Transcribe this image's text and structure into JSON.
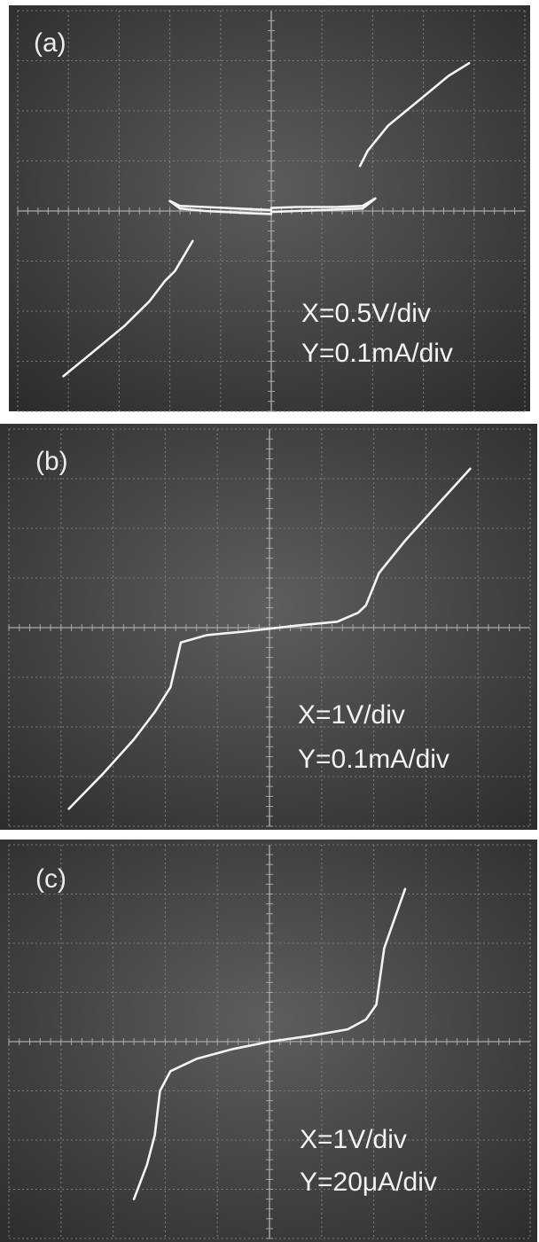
{
  "chart_data": [
    {
      "type": "line",
      "panel_label": "(a)",
      "annotations": [
        "X=0.5V/div",
        "Y=0.1mA/div"
      ],
      "grid": true,
      "xlim_div": [
        -5,
        5
      ],
      "ylim_div": [
        -4,
        4
      ],
      "series": [
        {
          "x": [
            -4.1,
            -3.5,
            -2.9,
            -2.4,
            -2.1,
            -1.9,
            -1.55
          ],
          "y": [
            -3.3,
            -2.8,
            -2.3,
            -1.8,
            -1.4,
            -1.2,
            -0.6
          ]
        },
        {
          "x": [
            -2.0,
            -1.8,
            -1.3,
            -0.5,
            0.0
          ],
          "y": [
            0.2,
            0.1,
            0.08,
            0.04,
            0.02
          ]
        },
        {
          "x": [
            -2.0,
            -1.8,
            -1.3,
            -0.5,
            0.0
          ],
          "y": [
            0.2,
            0.05,
            0.0,
            -0.04,
            -0.06
          ]
        },
        {
          "x": [
            0.0,
            0.5,
            1.3,
            1.8,
            2.05
          ],
          "y": [
            0.06,
            0.08,
            0.08,
            0.1,
            0.25
          ]
        },
        {
          "x": [
            0.0,
            0.5,
            1.3,
            1.8,
            2.05
          ],
          "y": [
            -0.02,
            0.0,
            0.03,
            0.05,
            0.25
          ]
        },
        {
          "x": [
            1.75,
            1.9,
            2.3,
            2.9,
            3.5,
            3.9
          ],
          "y": [
            0.9,
            1.2,
            1.7,
            2.2,
            2.7,
            2.95
          ]
        }
      ]
    },
    {
      "type": "line",
      "panel_label": "(b)",
      "annotations": [
        "X=1V/div",
        "Y=0.1mA/div"
      ],
      "grid": true,
      "xlim_div": [
        -5,
        5
      ],
      "ylim_div": [
        -4,
        4
      ],
      "series": [
        {
          "x": [
            -3.85,
            -3.2,
            -2.6,
            -2.2,
            -1.9,
            -1.7,
            -1.2,
            -0.5,
            0.5,
            1.3,
            1.7,
            1.85,
            2.1,
            2.6,
            3.2,
            3.85
          ],
          "y": [
            -3.65,
            -2.95,
            -2.25,
            -1.7,
            -1.2,
            -0.3,
            -0.15,
            -0.08,
            0.04,
            0.12,
            0.3,
            0.45,
            1.1,
            1.75,
            2.45,
            3.2
          ]
        }
      ]
    },
    {
      "type": "line",
      "panel_label": "(c)",
      "annotations": [
        "X=1V/div",
        "Y=20μA/div"
      ],
      "grid": true,
      "xlim_div": [
        -5,
        5
      ],
      "ylim_div": [
        -4,
        4
      ],
      "series": [
        {
          "x": [
            -2.6,
            -2.35,
            -2.2,
            -2.1,
            -1.9,
            -1.4,
            -0.7,
            0.0,
            0.8,
            1.5,
            1.85,
            2.05,
            2.12,
            2.2,
            2.4,
            2.6
          ],
          "y": [
            -3.2,
            -2.5,
            -1.9,
            -1.0,
            -0.6,
            -0.35,
            -0.15,
            0.0,
            0.12,
            0.25,
            0.45,
            0.75,
            1.3,
            1.9,
            2.5,
            3.1
          ]
        }
      ]
    }
  ]
}
